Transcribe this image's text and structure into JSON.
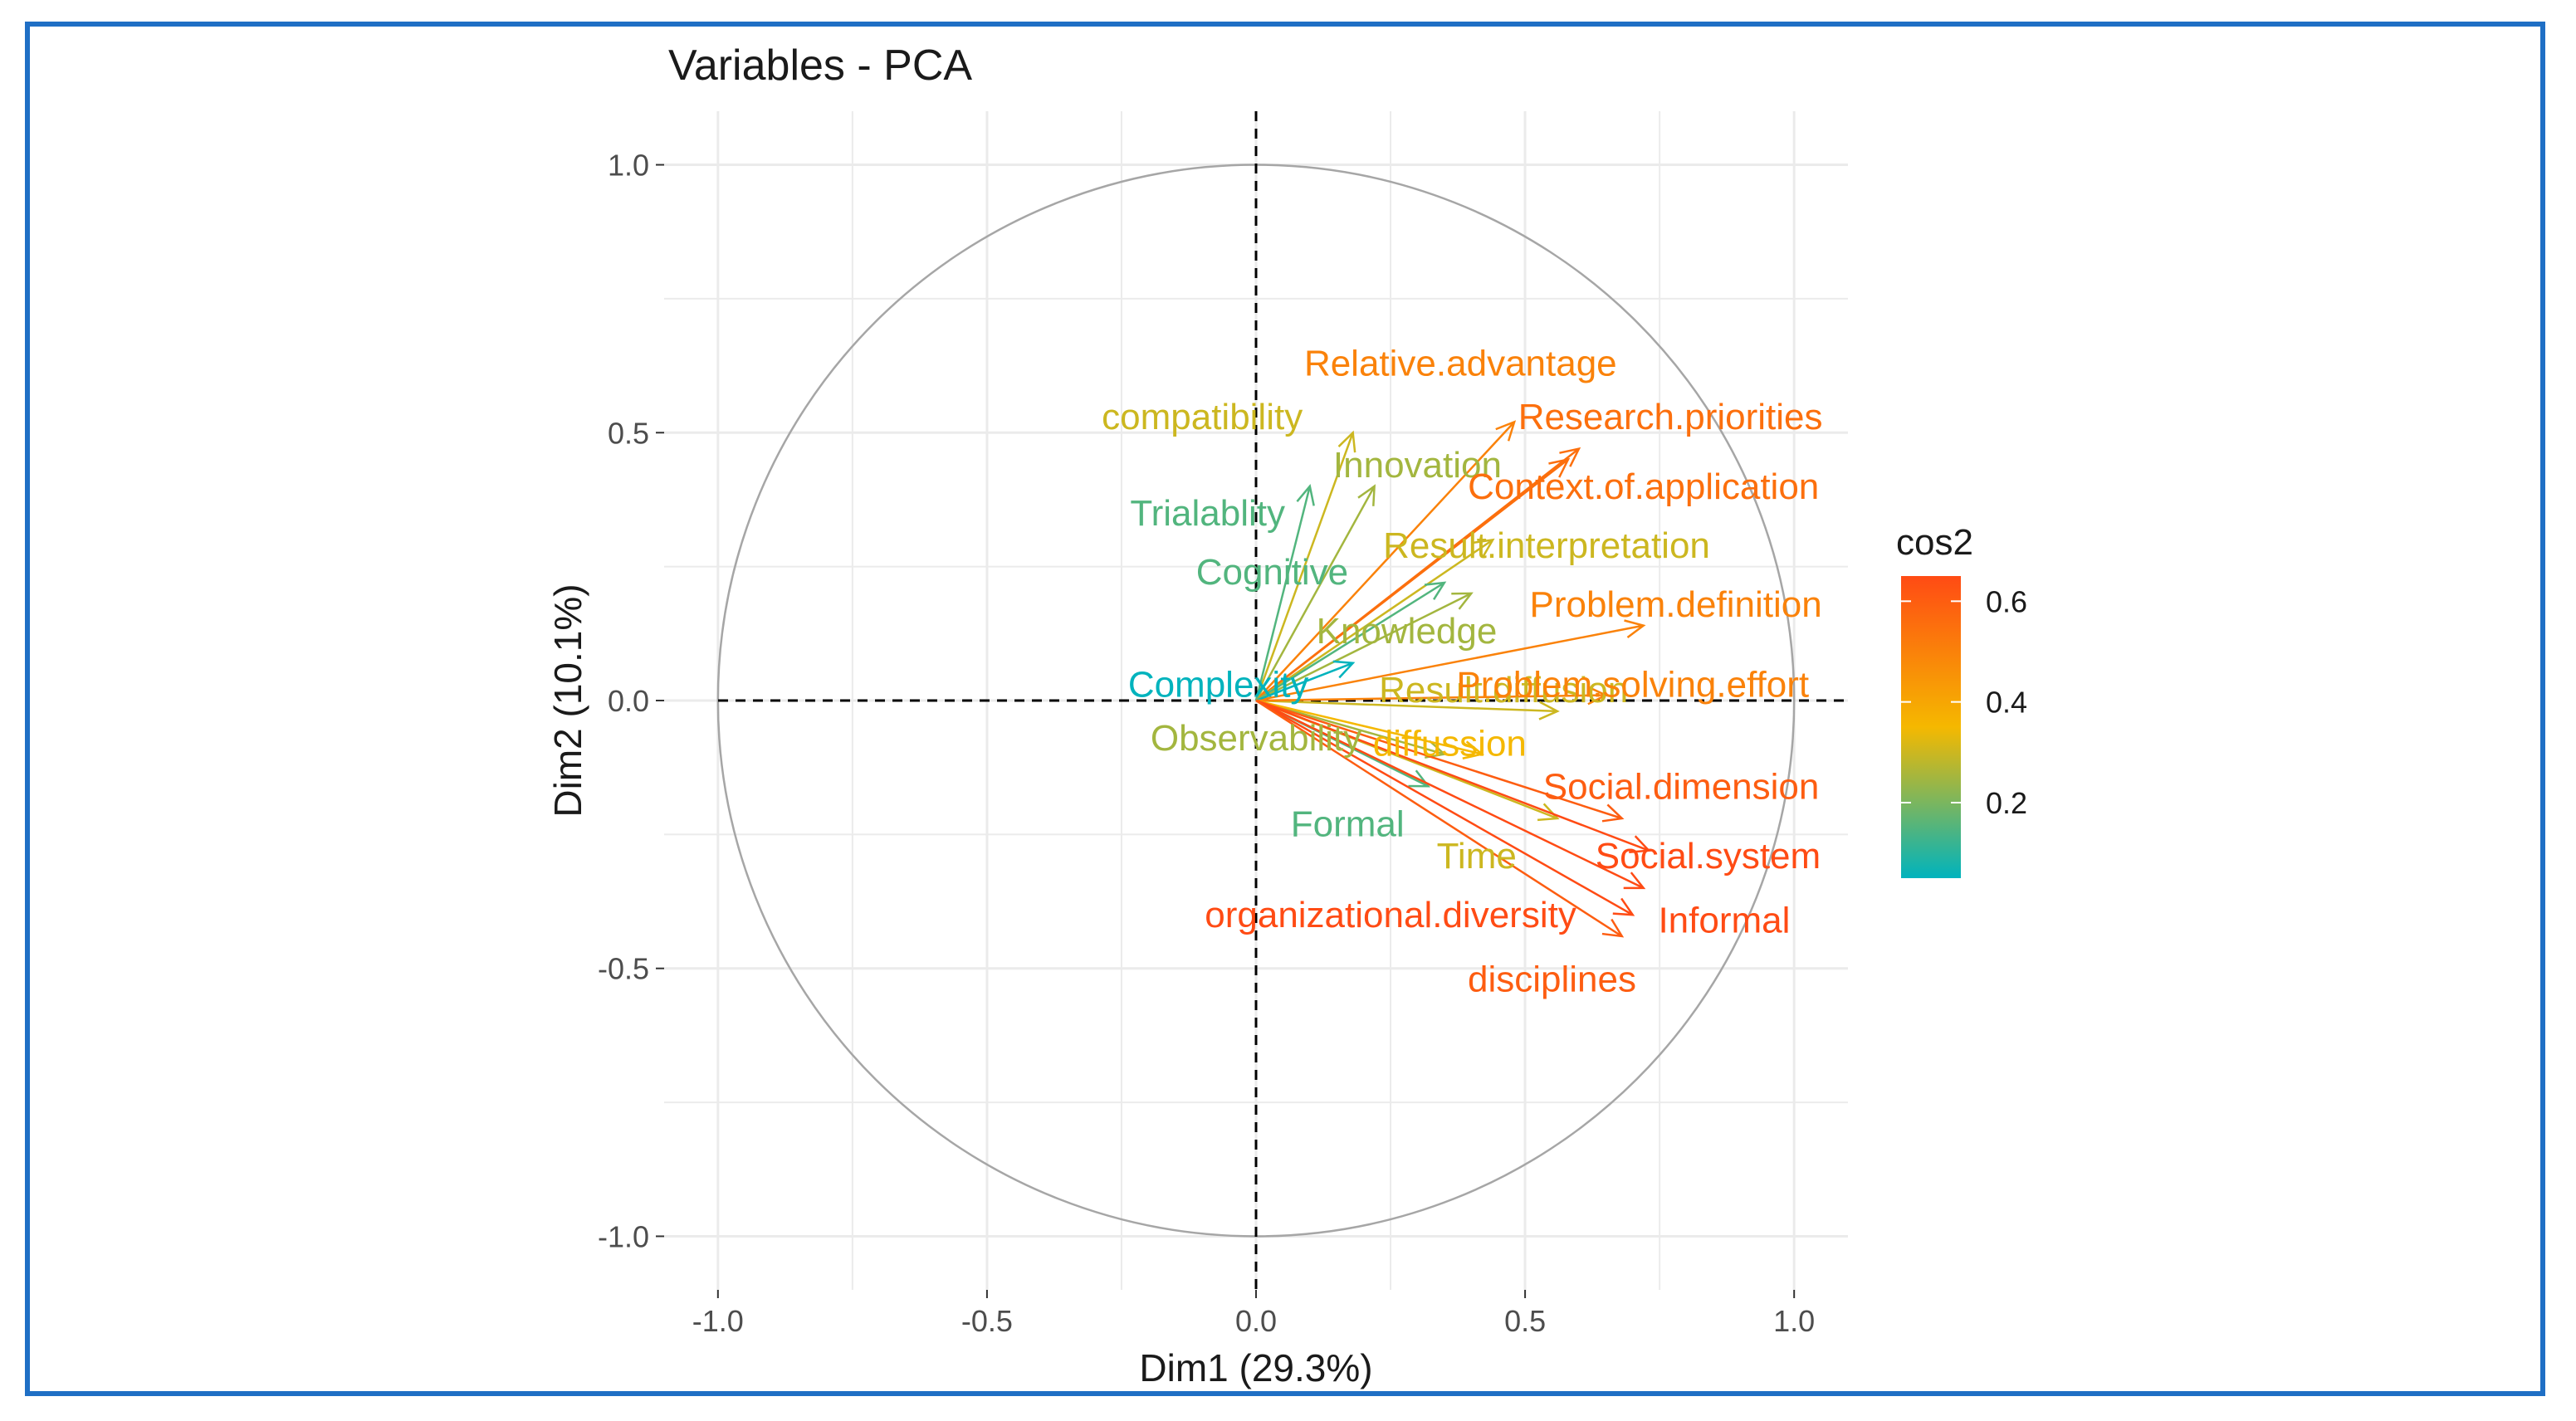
{
  "chart_data": {
    "type": "scatter",
    "subtype": "pca-variable-correlation-circle",
    "title": "Variables - PCA",
    "xlabel": "Dim1 (29.3%)",
    "ylabel": "Dim2 (10.1%)",
    "xlim": [
      -1.1,
      1.1
    ],
    "ylim": [
      -1.1,
      1.1
    ],
    "x_ticks": [
      -1.0,
      -0.5,
      0.0,
      0.5,
      1.0
    ],
    "y_ticks": [
      -1.0,
      -0.5,
      0.0,
      0.5,
      1.0
    ],
    "x_tick_labels": [
      "-1.0",
      "-0.5",
      "0.0",
      "0.5",
      "1.0"
    ],
    "y_tick_labels": [
      "-1.0",
      "-0.5",
      "0.0",
      "0.5",
      "1.0"
    ],
    "grid": true,
    "legend": {
      "title": "cos2",
      "placement": "right",
      "ticks": [
        0.2,
        0.4,
        0.6
      ],
      "tick_labels": [
        "0.2",
        "0.4",
        "0.6"
      ],
      "range": [
        0.05,
        0.65
      ],
      "colors": {
        "low": "#00b3bd",
        "mid": "#f5b800",
        "high": "#ff4b14"
      }
    },
    "variables": [
      {
        "name": "Relative.advantage",
        "x": 0.48,
        "y": 0.52,
        "cos2": 0.5,
        "label_x": 0.38,
        "label_y": 0.63
      },
      {
        "name": "compatibility",
        "x": 0.18,
        "y": 0.5,
        "cos2": 0.3,
        "label_x": -0.1,
        "label_y": 0.53
      },
      {
        "name": "Research.priorities",
        "x": 0.6,
        "y": 0.47,
        "cos2": 0.55,
        "label_x": 0.77,
        "label_y": 0.53
      },
      {
        "name": "Innovation",
        "x": 0.22,
        "y": 0.4,
        "cos2": 0.25,
        "label_x": 0.3,
        "label_y": 0.44
      },
      {
        "name": "Context.of.application",
        "x": 0.58,
        "y": 0.45,
        "cos2": 0.55,
        "label_x": 0.72,
        "label_y": 0.4
      },
      {
        "name": "Trialablity",
        "x": 0.1,
        "y": 0.4,
        "cos2": 0.15,
        "label_x": -0.09,
        "label_y": 0.35
      },
      {
        "name": "Result.interpretation",
        "x": 0.44,
        "y": 0.3,
        "cos2": 0.3,
        "label_x": 0.54,
        "label_y": 0.29
      },
      {
        "name": "Cognitive",
        "x": 0.35,
        "y": 0.22,
        "cos2": 0.15,
        "label_x": 0.03,
        "label_y": 0.24
      },
      {
        "name": "Problem.definition",
        "x": 0.72,
        "y": 0.14,
        "cos2": 0.5,
        "label_x": 0.78,
        "label_y": 0.18
      },
      {
        "name": "Knowledge",
        "x": 0.4,
        "y": 0.2,
        "cos2": 0.25,
        "label_x": 0.28,
        "label_y": 0.13
      },
      {
        "name": "Complexity",
        "x": 0.18,
        "y": 0.07,
        "cos2": 0.05,
        "label_x": -0.07,
        "label_y": 0.03
      },
      {
        "name": "Result.diffusion",
        "x": 0.56,
        "y": -0.02,
        "cos2": 0.3,
        "label_x": 0.46,
        "label_y": 0.02
      },
      {
        "name": "Problem.solving.effort",
        "x": 0.65,
        "y": 0.01,
        "cos2": 0.5,
        "label_x": 0.7,
        "label_y": 0.03
      },
      {
        "name": "Observability",
        "x": 0.35,
        "y": -0.1,
        "cos2": 0.25,
        "label_x": 0.0,
        "label_y": -0.07
      },
      {
        "name": "diffussion",
        "x": 0.42,
        "y": -0.1,
        "cos2": 0.35,
        "label_x": 0.36,
        "label_y": -0.08
      },
      {
        "name": "Social.dimension",
        "x": 0.68,
        "y": -0.22,
        "cos2": 0.6,
        "label_x": 0.79,
        "label_y": -0.16
      },
      {
        "name": "Formal",
        "x": 0.32,
        "y": -0.16,
        "cos2": 0.15,
        "label_x": 0.17,
        "label_y": -0.23
      },
      {
        "name": "Time",
        "x": 0.56,
        "y": -0.22,
        "cos2": 0.3,
        "label_x": 0.41,
        "label_y": -0.29
      },
      {
        "name": "Social.system",
        "x": 0.73,
        "y": -0.28,
        "cos2": 0.65,
        "label_x": 0.84,
        "label_y": -0.29
      },
      {
        "name": "organizational.diversity",
        "x": 0.7,
        "y": -0.4,
        "cos2": 0.65,
        "label_x": 0.25,
        "label_y": -0.4
      },
      {
        "name": "Informal",
        "x": 0.72,
        "y": -0.35,
        "cos2": 0.65,
        "label_x": 0.87,
        "label_y": -0.41
      },
      {
        "name": "disciplines",
        "x": 0.68,
        "y": -0.44,
        "cos2": 0.6,
        "label_x": 0.55,
        "label_y": -0.52
      }
    ]
  }
}
